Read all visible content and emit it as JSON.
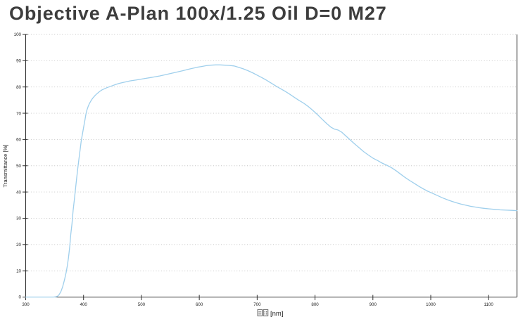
{
  "title": "Objective A-Plan 100x/1.25 Oil D=0 M27",
  "colors": {
    "curve": "#9fcfec",
    "axis": "#2f2f2f",
    "grid": "#c2c2c2",
    "title_text": "#3d3d3d",
    "label_text": "#1f1f1f"
  },
  "chart_data": {
    "type": "line",
    "title": "Objective A-Plan 100x/1.25 Oil D=0 M27",
    "ylabel": "Transmittance [%]",
    "xlabel_missing_glyph_count": 2,
    "xlabel_unit": "[nm]",
    "xlim": [
      300,
      1149
    ],
    "ylim": [
      0,
      100
    ],
    "x_ticks": [
      300,
      400,
      500,
      600,
      700,
      800,
      900,
      1000,
      1100
    ],
    "y_ticks": [
      0,
      10,
      20,
      30,
      40,
      50,
      60,
      70,
      80,
      90,
      100
    ],
    "grid": "horizontal-dotted",
    "legend": "none",
    "series": [
      {
        "name": "transmittance",
        "points": [
          [
            300,
            0
          ],
          [
            310,
            0
          ],
          [
            320,
            0
          ],
          [
            330,
            0
          ],
          [
            340,
            0
          ],
          [
            348,
            0
          ],
          [
            352,
            0.1
          ],
          [
            355,
            0.3
          ],
          [
            358,
            1
          ],
          [
            361,
            2.2
          ],
          [
            364,
            4
          ],
          [
            367,
            6.5
          ],
          [
            370,
            9.5
          ],
          [
            372,
            12
          ],
          [
            374,
            15
          ],
          [
            376,
            19
          ],
          [
            378,
            24
          ],
          [
            380,
            28
          ],
          [
            382,
            33
          ],
          [
            384,
            37
          ],
          [
            386,
            41
          ],
          [
            388,
            45
          ],
          [
            390,
            49
          ],
          [
            392,
            52.5
          ],
          [
            394,
            56
          ],
          [
            396,
            59.5
          ],
          [
            398,
            62
          ],
          [
            400,
            64.5
          ],
          [
            402,
            67
          ],
          [
            404,
            69.5
          ],
          [
            406,
            71.3
          ],
          [
            408,
            72.6
          ],
          [
            410,
            73.6
          ],
          [
            413,
            74.8
          ],
          [
            416,
            75.8
          ],
          [
            420,
            76.8
          ],
          [
            424,
            77.6
          ],
          [
            428,
            78.3
          ],
          [
            432,
            78.9
          ],
          [
            436,
            79.3
          ],
          [
            440,
            79.7
          ],
          [
            445,
            80.1
          ],
          [
            450,
            80.5
          ],
          [
            456,
            81
          ],
          [
            462,
            81.4
          ],
          [
            468,
            81.7
          ],
          [
            474,
            82
          ],
          [
            480,
            82.3
          ],
          [
            486,
            82.5
          ],
          [
            492,
            82.7
          ],
          [
            500,
            83
          ],
          [
            508,
            83.3
          ],
          [
            516,
            83.6
          ],
          [
            524,
            83.9
          ],
          [
            532,
            84.2
          ],
          [
            540,
            84.6
          ],
          [
            548,
            85
          ],
          [
            556,
            85.4
          ],
          [
            564,
            85.8
          ],
          [
            572,
            86.2
          ],
          [
            580,
            86.7
          ],
          [
            588,
            87.1
          ],
          [
            596,
            87.5
          ],
          [
            604,
            87.8
          ],
          [
            612,
            88.1
          ],
          [
            620,
            88.3
          ],
          [
            628,
            88.4
          ],
          [
            636,
            88.4
          ],
          [
            644,
            88.3
          ],
          [
            652,
            88.2
          ],
          [
            660,
            88
          ],
          [
            668,
            87.5
          ],
          [
            676,
            86.9
          ],
          [
            684,
            86.2
          ],
          [
            692,
            85.4
          ],
          [
            700,
            84.5
          ],
          [
            708,
            83.6
          ],
          [
            716,
            82.6
          ],
          [
            724,
            81.5
          ],
          [
            732,
            80.4
          ],
          [
            740,
            79.4
          ],
          [
            748,
            78.4
          ],
          [
            756,
            77.3
          ],
          [
            764,
            76.1
          ],
          [
            772,
            74.9
          ],
          [
            780,
            73.9
          ],
          [
            788,
            72.6
          ],
          [
            796,
            71.1
          ],
          [
            804,
            69.5
          ],
          [
            812,
            67.8
          ],
          [
            820,
            66.1
          ],
          [
            828,
            64.6
          ],
          [
            834,
            63.9
          ],
          [
            840,
            63.6
          ],
          [
            846,
            62.8
          ],
          [
            852,
            61.6
          ],
          [
            860,
            60
          ],
          [
            868,
            58.4
          ],
          [
            876,
            56.9
          ],
          [
            884,
            55.4
          ],
          [
            892,
            54.1
          ],
          [
            900,
            52.9
          ],
          [
            908,
            52
          ],
          [
            916,
            51
          ],
          [
            924,
            50.2
          ],
          [
            932,
            49.3
          ],
          [
            940,
            48.1
          ],
          [
            948,
            46.8
          ],
          [
            956,
            45.5
          ],
          [
            964,
            44.3
          ],
          [
            972,
            43.2
          ],
          [
            980,
            42.1
          ],
          [
            988,
            41.1
          ],
          [
            996,
            40.2
          ],
          [
            1004,
            39.4
          ],
          [
            1012,
            38.6
          ],
          [
            1020,
            37.8
          ],
          [
            1028,
            37.1
          ],
          [
            1036,
            36.5
          ],
          [
            1044,
            35.9
          ],
          [
            1052,
            35.4
          ],
          [
            1060,
            35
          ],
          [
            1068,
            34.6
          ],
          [
            1076,
            34.3
          ],
          [
            1084,
            34
          ],
          [
            1092,
            33.8
          ],
          [
            1100,
            33.6
          ],
          [
            1110,
            33.4
          ],
          [
            1120,
            33.2
          ],
          [
            1130,
            33.1
          ],
          [
            1140,
            33
          ],
          [
            1149,
            32.9
          ]
        ]
      }
    ]
  }
}
